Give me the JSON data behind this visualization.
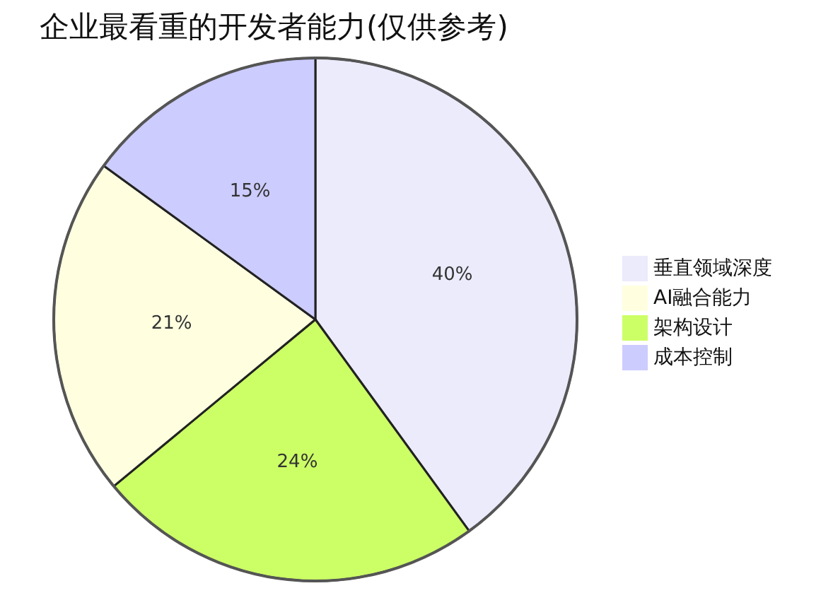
{
  "chart_data": {
    "type": "pie",
    "title": "企业最看重的开发者能力(仅供参考)",
    "categories": [
      "垂直领域深度",
      "架构设计",
      "AI融合能力",
      "成本控制"
    ],
    "values": [
      40,
      24,
      21,
      15
    ],
    "value_labels": [
      "40%",
      "24%",
      "21%",
      "15%"
    ],
    "colors": [
      "#ebebfc",
      "#ccff66",
      "#ffffe0",
      "#ccccff"
    ],
    "legend": "right"
  }
}
